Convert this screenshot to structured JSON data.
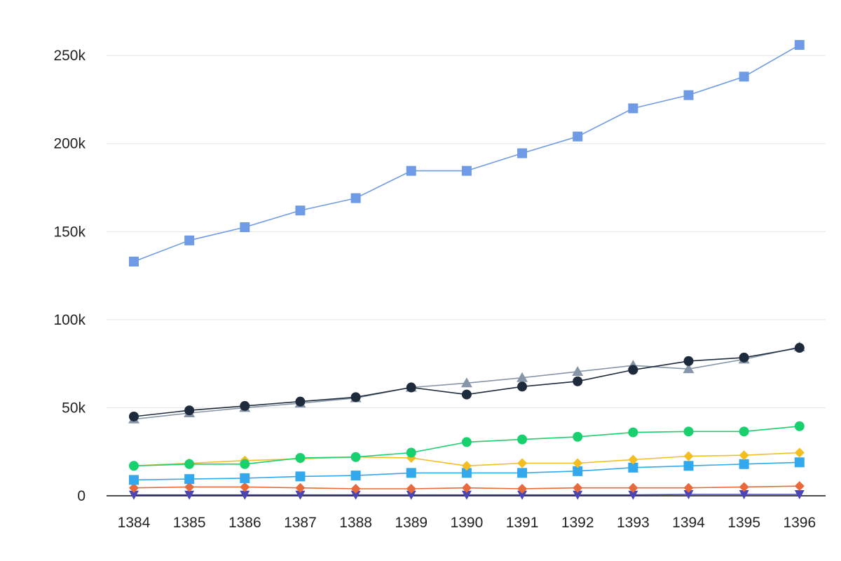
{
  "chart_data": {
    "type": "line",
    "title": "",
    "xlabel": "",
    "ylabel": "",
    "legend": "none",
    "grid": "horizontal",
    "x": [
      1384,
      1385,
      1386,
      1387,
      1388,
      1389,
      1390,
      1391,
      1392,
      1393,
      1394,
      1395,
      1396
    ],
    "x_tick_labels": [
      "1384",
      "1385",
      "1386",
      "1387",
      "1388",
      "1389",
      "1390",
      "1391",
      "1392",
      "1393",
      "1394",
      "1395",
      "1396"
    ],
    "ylim": [
      0,
      262000
    ],
    "y_ticks": [
      0,
      50000,
      100000,
      150000,
      200000,
      250000
    ],
    "y_tick_labels": [
      "0",
      "50k",
      "100k",
      "150k",
      "200k",
      "250k"
    ],
    "series": [
      {
        "color": "#6f9be6",
        "marker": "square",
        "values": [
          133000,
          145000,
          152500,
          162000,
          169000,
          184500,
          184500,
          194500,
          204000,
          220000,
          227500,
          238000,
          256000
        ]
      },
      {
        "color": "#1e2b3c",
        "marker": "circle",
        "values": [
          45000,
          48500,
          51000,
          53500,
          56000,
          61500,
          57500,
          62000,
          65000,
          71500,
          76500,
          78500,
          84000
        ]
      },
      {
        "color": "#8696a8",
        "marker": "triangle-up",
        "values": [
          43500,
          47000,
          50000,
          52500,
          55500,
          61500,
          64000,
          67000,
          70500,
          74000,
          72000,
          77500,
          84500
        ]
      },
      {
        "color": "#18d16e",
        "marker": "circle",
        "values": [
          17000,
          18000,
          18000,
          21500,
          22000,
          24500,
          30500,
          32000,
          33500,
          36000,
          36500,
          36500,
          39500
        ]
      },
      {
        "color": "#f4be1e",
        "marker": "diamond",
        "values": [
          17000,
          18500,
          20000,
          21000,
          22000,
          21500,
          17000,
          18500,
          18500,
          20500,
          22500,
          23000,
          24500
        ]
      },
      {
        "color": "#33a8ec",
        "marker": "square",
        "values": [
          9000,
          9500,
          10000,
          11000,
          11500,
          13000,
          13000,
          13000,
          14000,
          16000,
          17000,
          18000,
          19000
        ]
      },
      {
        "color": "#e86a3a",
        "marker": "diamond",
        "values": [
          4500,
          5000,
          5000,
          4500,
          4000,
          4000,
          4500,
          4000,
          4500,
          4500,
          4500,
          5000,
          5500
        ]
      },
      {
        "color": "#4a45b8",
        "marker": "triangle-down",
        "values": [
          500,
          500,
          500,
          500,
          500,
          500,
          500,
          500,
          500,
          500,
          800,
          800,
          800
        ]
      }
    ]
  }
}
